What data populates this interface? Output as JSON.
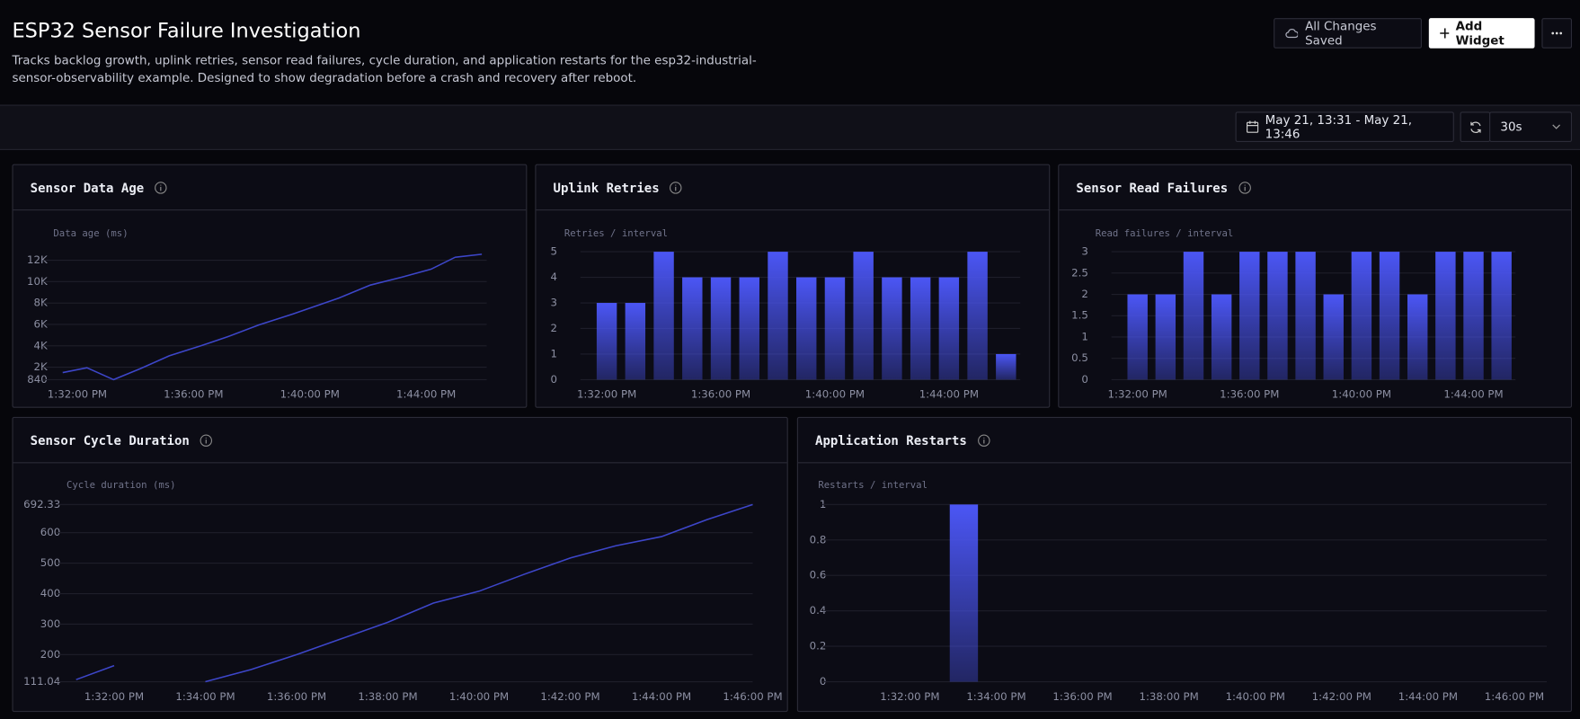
{
  "header": {
    "title": "ESP32 Sensor Failure Investigation",
    "description": "Tracks backlog growth, uplink retries, sensor read failures, cycle duration, and application restarts for the esp32-industrial-sensor-observability example. Designed to show degradation before a crash and recovery after reboot."
  },
  "actions": {
    "save_status": "All Changes Saved",
    "add_widget": "Add Widget"
  },
  "toolbar": {
    "time_range": "May 21, 13:31 - May 21, 13:46",
    "refresh_interval": "30s"
  },
  "chart_data": [
    {
      "type": "line",
      "title": "Sensor Data Age",
      "y_label": "Data age (ms)",
      "color": "#3d46c9",
      "grid": true,
      "x": [
        "1:31:30 PM",
        "1:32:20 PM",
        "1:33:15 PM",
        "1:34:10 PM",
        "1:35:10 PM",
        "1:36:15 PM",
        "1:37:10 PM",
        "1:38:15 PM",
        "1:39:25 PM",
        "1:41:00 PM",
        "1:42:05 PM",
        "1:43:10 PM",
        "1:44:10 PM",
        "1:45:00 PM",
        "1:45:55 PM"
      ],
      "values": [
        1500,
        1950,
        840,
        1860,
        3070,
        4000,
        4840,
        5960,
        6980,
        8470,
        9680,
        10420,
        11160,
        12280,
        12560
      ],
      "xlim": [
        "1:31:15 PM",
        "1:46:05 PM"
      ],
      "xticks": [
        "1:32:00 PM",
        "1:36:00 PM",
        "1:40:00 PM",
        "1:44:00 PM"
      ],
      "ylim": [
        840,
        12700
      ],
      "yticks": [
        840,
        {
          "value": 2000,
          "label": "2K"
        },
        {
          "value": 4000,
          "label": "4K"
        },
        {
          "value": 6000,
          "label": "6K"
        },
        {
          "value": 8000,
          "label": "8K"
        },
        {
          "value": 10000,
          "label": "10K"
        },
        {
          "value": 12000,
          "label": "12K"
        }
      ]
    },
    {
      "type": "bar",
      "title": "Uplink Retries",
      "y_label": "Retries / interval",
      "color": "#4b56f5",
      "grid": true,
      "categories": [
        "1:32:00 PM",
        null,
        null,
        null,
        "1:36:00 PM",
        null,
        null,
        null,
        "1:40:00 PM",
        null,
        null,
        null,
        "1:44:00 PM",
        null,
        null
      ],
      "values": [
        3,
        3,
        5,
        4,
        4,
        4,
        5,
        4,
        4,
        5,
        4,
        4,
        4,
        5,
        1
      ],
      "ylim": [
        0,
        5
      ],
      "yticks": [
        0,
        1,
        2,
        3,
        4,
        5
      ]
    },
    {
      "type": "bar",
      "title": "Sensor Read Failures",
      "y_label": "Read failures / interval",
      "color": "#4b56f5",
      "grid": true,
      "categories": [
        "1:32:00 PM",
        null,
        null,
        null,
        "1:36:00 PM",
        null,
        null,
        null,
        "1:40:00 PM",
        null,
        null,
        null,
        "1:44:00 PM",
        null
      ],
      "values": [
        2,
        2,
        3,
        2,
        3,
        3,
        3,
        2,
        3,
        3,
        2,
        3,
        3,
        3
      ],
      "ylim": [
        0,
        3
      ],
      "yticks": [
        0,
        0.5,
        1,
        1.5,
        2,
        2.5,
        3
      ]
    },
    {
      "type": "line",
      "title": "Sensor Cycle Duration",
      "y_label": "Cycle duration (ms)",
      "color": "#3d46c9",
      "grid": true,
      "x": [
        "1:31:10 PM",
        "1:32:00 PM",
        "1:33:00 PM",
        "1:34:00 PM",
        "1:35:00 PM",
        "1:36:00 PM",
        "1:37:00 PM",
        "1:38:00 PM",
        "1:39:00 PM",
        "1:40:00 PM",
        "1:41:00 PM",
        "1:42:00 PM",
        "1:43:00 PM",
        "1:44:00 PM",
        "1:45:00 PM",
        "1:46:00 PM"
      ],
      "values": [
        118,
        164,
        null,
        111.04,
        151,
        200,
        253,
        306,
        369,
        408,
        464,
        517,
        557,
        587,
        643,
        692.33
      ],
      "xlim": [
        "1:31:00 PM",
        "1:46:00 PM"
      ],
      "xticks": [
        "1:32:00 PM",
        "1:34:00 PM",
        "1:36:00 PM",
        "1:38:00 PM",
        "1:40:00 PM",
        "1:42:00 PM",
        "1:44:00 PM",
        "1:46:00 PM"
      ],
      "ylim": [
        111.04,
        692.33
      ],
      "yticks": [
        111.04,
        200,
        300,
        400,
        500,
        600,
        692.33
      ]
    },
    {
      "type": "bar",
      "title": "Application Restarts",
      "y_label": "Restarts / interval",
      "color": "#4b56f5",
      "grid": true,
      "x": [
        "1:33:15 PM"
      ],
      "values": [
        1
      ],
      "xlim": [
        "1:30:15 PM",
        "1:46:45 PM"
      ],
      "xticks": [
        "1:32:00 PM",
        "1:34:00 PM",
        "1:36:00 PM",
        "1:38:00 PM",
        "1:40:00 PM",
        "1:42:00 PM",
        "1:44:00 PM",
        "1:46:00 PM"
      ],
      "ylim": [
        0,
        1
      ],
      "yticks": [
        0,
        0.2,
        0.4,
        0.6,
        0.8,
        1
      ]
    }
  ]
}
